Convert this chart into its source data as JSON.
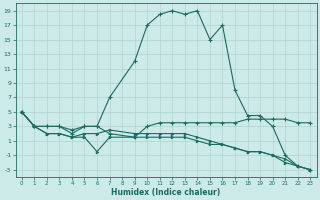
{
  "xlabel": "Humidex (Indice chaleur)",
  "bg_color": "#cceae7",
  "grid_color": "#aed4d0",
  "line_color": "#1a6b60",
  "line1_x": [
    0,
    1,
    2,
    3,
    4,
    5,
    6,
    7,
    9,
    10,
    11,
    12,
    13,
    14,
    15,
    16,
    17,
    18,
    19,
    20,
    21,
    22,
    23
  ],
  "line1_y": [
    5,
    3,
    3,
    3,
    2,
    3,
    3,
    7,
    12,
    17,
    18.5,
    19,
    18.5,
    19,
    15,
    17,
    8,
    4.5,
    4.5,
    3,
    -1,
    -2.5,
    -3
  ],
  "line2_x": [
    0,
    1,
    2,
    3,
    4,
    5,
    6,
    7,
    9,
    10,
    11,
    12,
    13,
    14,
    15,
    16,
    17,
    18,
    19,
    20,
    21,
    22,
    23
  ],
  "line2_y": [
    5,
    3,
    3,
    3,
    2.5,
    3,
    3,
    2,
    1.5,
    3,
    3.5,
    3.5,
    3.5,
    3.5,
    3.5,
    3.5,
    3.5,
    4,
    4,
    4,
    4,
    3.5,
    3.5
  ],
  "line3_x": [
    0,
    1,
    2,
    3,
    4,
    5,
    6,
    7,
    9,
    10,
    11,
    12,
    13,
    14,
    15,
    16,
    17,
    18,
    19,
    20,
    21,
    22,
    23
  ],
  "line3_y": [
    5,
    3,
    2,
    2,
    1.5,
    1.5,
    -0.5,
    1.5,
    1.5,
    1.5,
    1.5,
    1.5,
    1.5,
    1.0,
    0.5,
    0.5,
    0.0,
    -0.5,
    -0.5,
    -1,
    -1.5,
    -2.5,
    -3
  ],
  "line4_x": [
    0,
    1,
    2,
    3,
    4,
    5,
    6,
    7,
    9,
    10,
    11,
    12,
    13,
    14,
    15,
    16,
    17,
    18,
    19,
    20,
    21,
    22,
    23
  ],
  "line4_y": [
    5,
    3,
    2,
    2,
    1.5,
    2,
    2,
    2.5,
    2,
    2,
    2,
    2,
    2,
    1.5,
    1,
    0.5,
    0,
    -0.5,
    -0.5,
    -1,
    -2,
    -2.5,
    -3
  ],
  "ylim": [
    -4,
    20
  ],
  "xlim": [
    -0.5,
    23.5
  ],
  "yticks": [
    -3,
    -1,
    1,
    3,
    5,
    7,
    9,
    11,
    13,
    15,
    17,
    19
  ],
  "xticks": [
    0,
    1,
    2,
    3,
    4,
    5,
    6,
    7,
    8,
    9,
    10,
    11,
    12,
    13,
    14,
    15,
    16,
    17,
    18,
    19,
    20,
    21,
    22,
    23
  ]
}
